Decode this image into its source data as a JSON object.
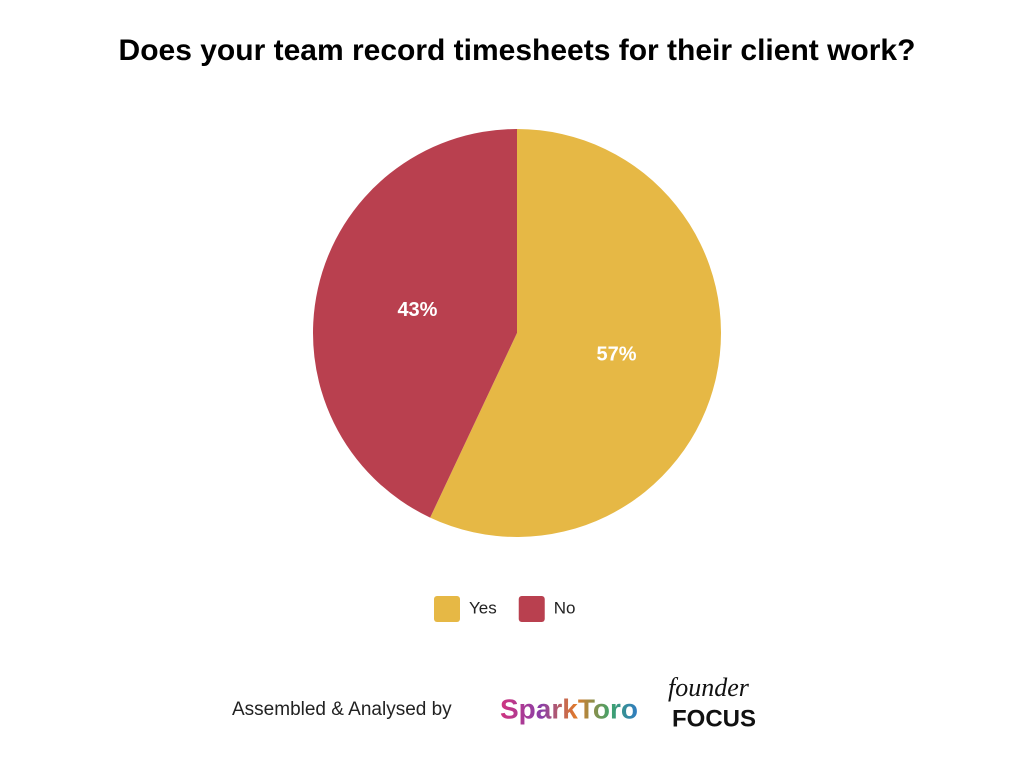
{
  "chart_data": {
    "type": "pie",
    "title": "Does your team record timesheets for their client work?",
    "categories": [
      "Yes",
      "No"
    ],
    "values": [
      57,
      43
    ],
    "value_labels": [
      "57%",
      "43%"
    ],
    "colors": [
      "#e6b845",
      "#b9404f"
    ],
    "legend": "bottom"
  },
  "footer": {
    "text": "Assembled & Analysed by",
    "logos": [
      "SparkToro",
      "founder",
      "FOCUS"
    ]
  }
}
